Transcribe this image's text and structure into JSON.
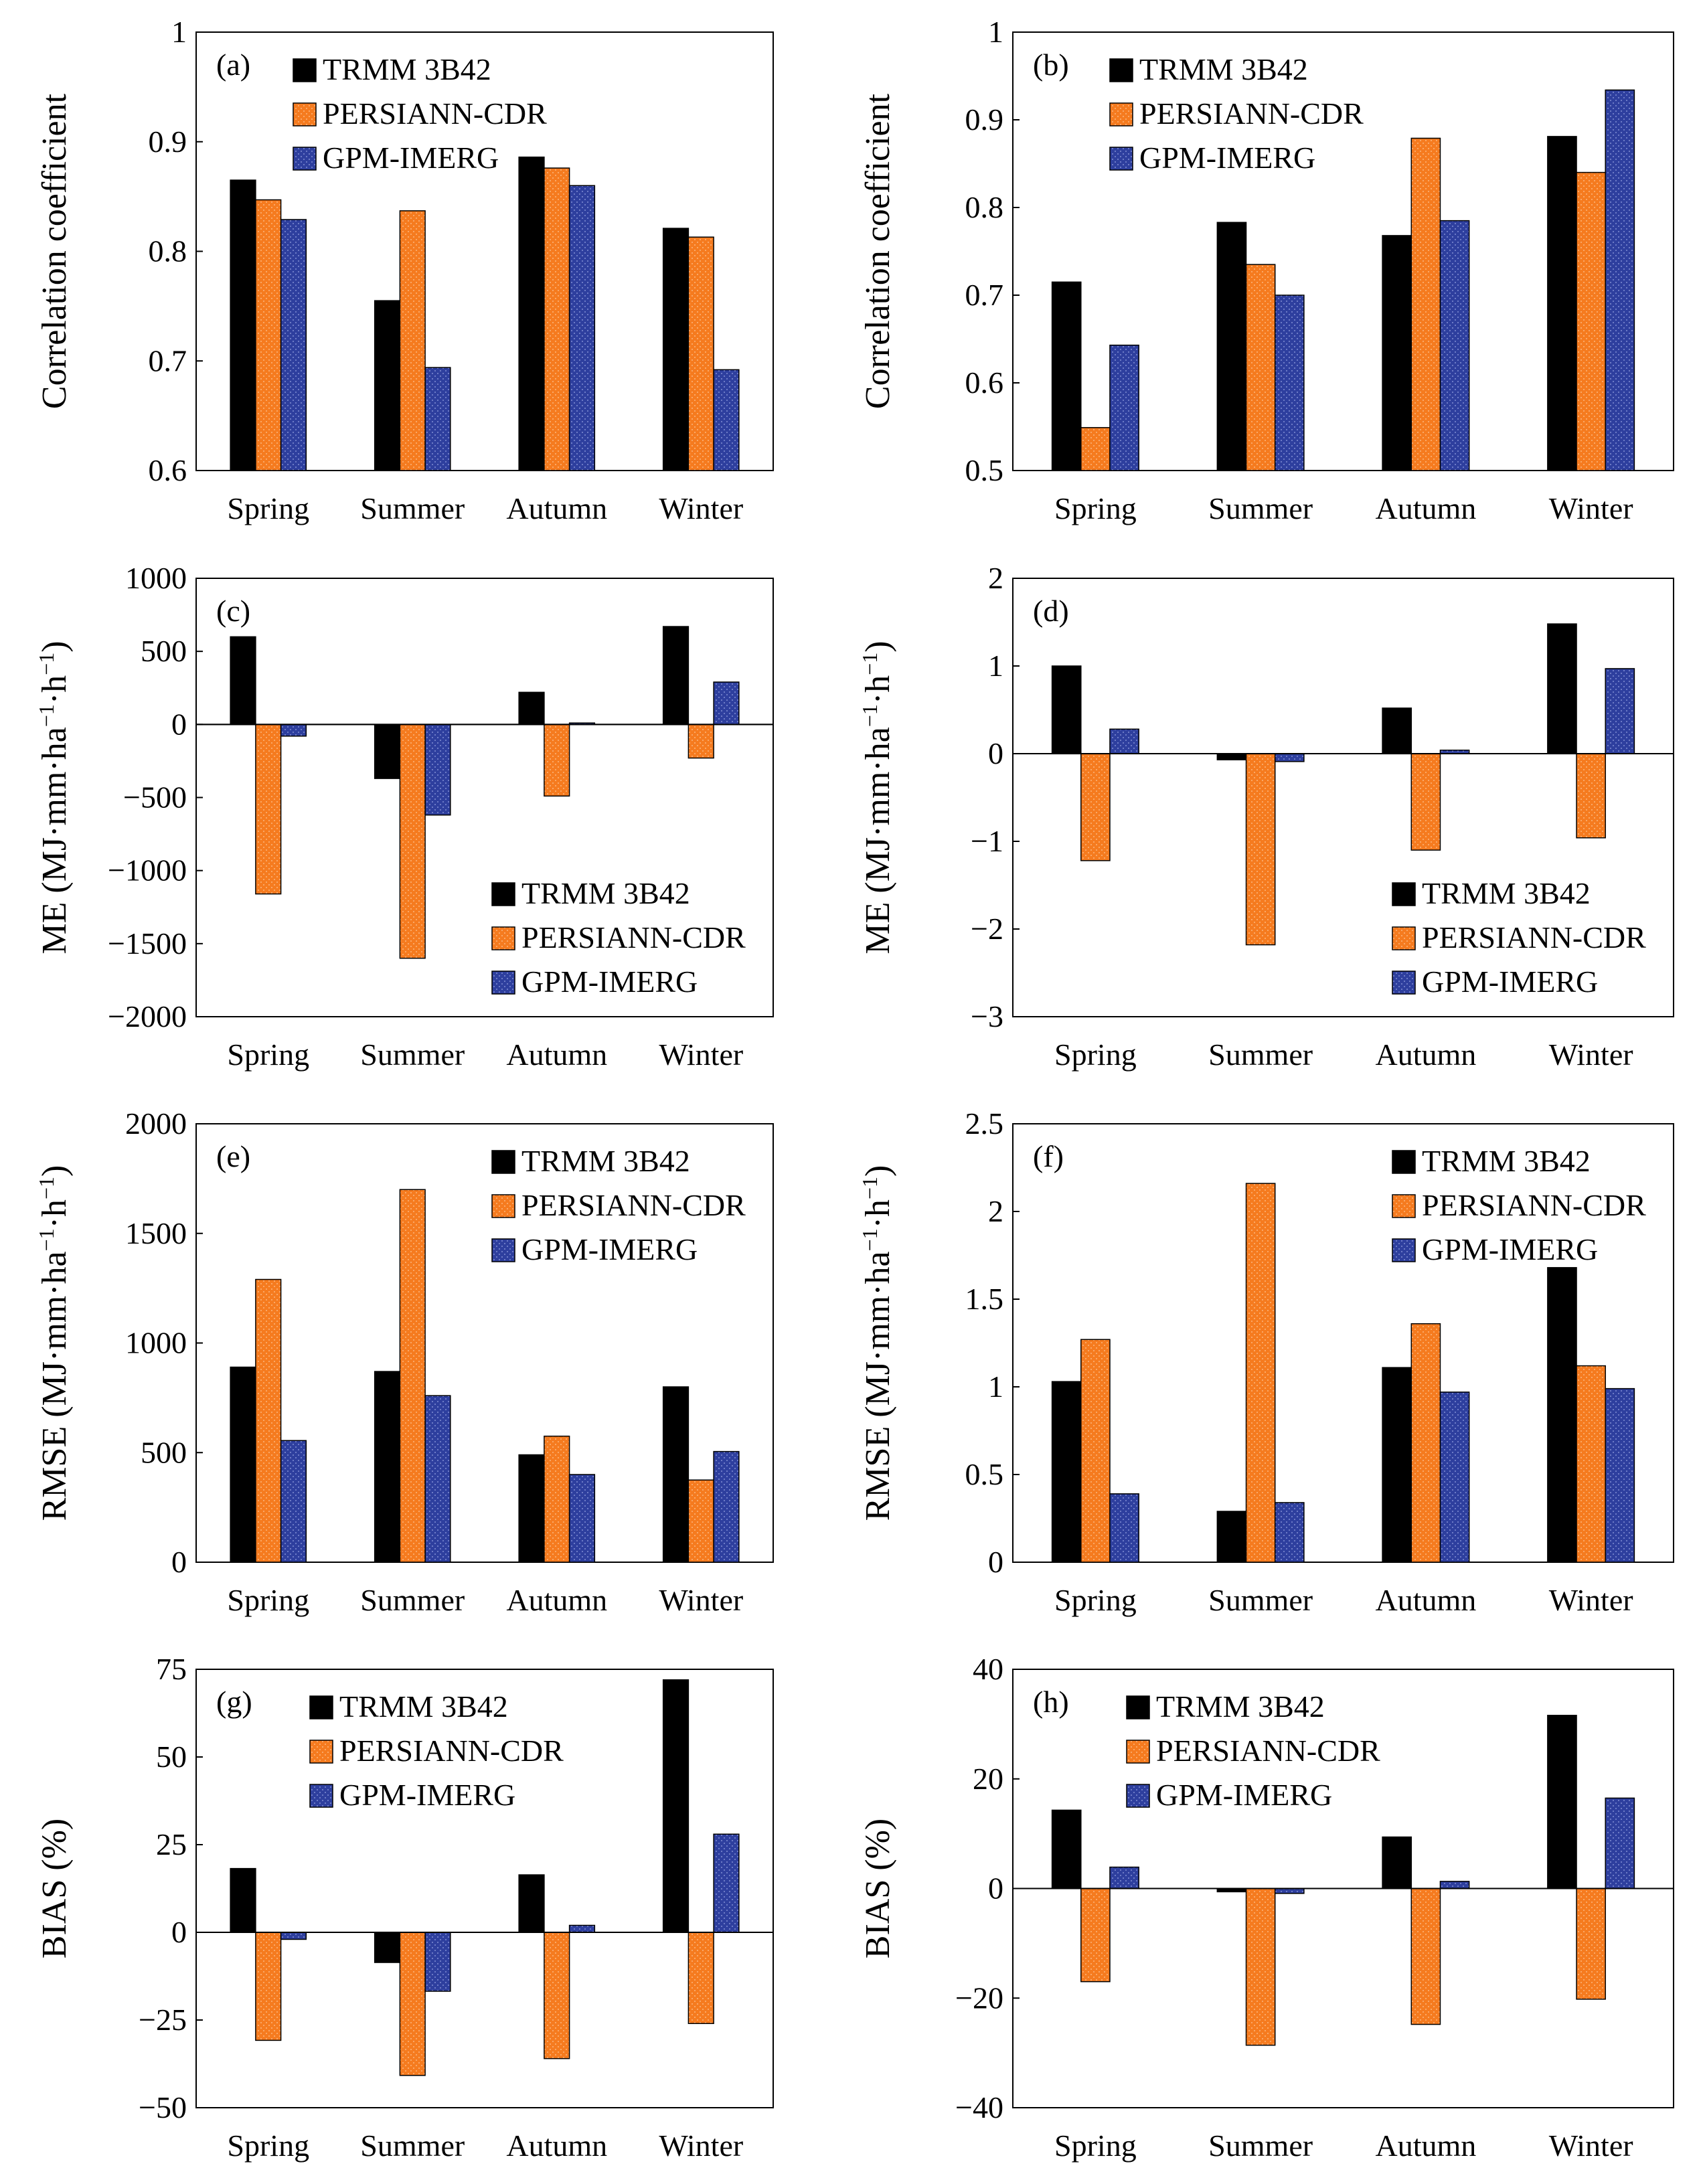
{
  "colors": {
    "TRMM 3B42": "#1a8a4e",
    "PERSIANN-CDR": "#f57b1f",
    "GPM-IMERG": "#2e3f9e"
  },
  "chart_data": [
    {
      "id": "a",
      "label": "(a)",
      "type": "bar",
      "categories": [
        "Spring",
        "Summer",
        "Autumn",
        "Winter"
      ],
      "ylabel": "Correlation coefficient",
      "ylim": [
        0.6,
        1.0
      ],
      "yticks": [
        0.6,
        0.7,
        0.8,
        0.9,
        1.0
      ],
      "ytick_labels": [
        "0.6",
        "0.7",
        "0.8",
        "0.9",
        "1"
      ],
      "legend": "top-center",
      "series": [
        {
          "name": "TRMM 3B42",
          "values": [
            0.865,
            0.755,
            0.886,
            0.821
          ]
        },
        {
          "name": "PERSIANN-CDR",
          "values": [
            0.847,
            0.837,
            0.876,
            0.813
          ]
        },
        {
          "name": "GPM-IMERG",
          "values": [
            0.829,
            0.694,
            0.86,
            0.692
          ]
        }
      ]
    },
    {
      "id": "b",
      "label": "(b)",
      "type": "bar",
      "categories": [
        "Spring",
        "Summer",
        "Autumn",
        "Winter"
      ],
      "ylabel": "Correlation coefficient",
      "ylim": [
        0.5,
        1.0
      ],
      "yticks": [
        0.5,
        0.6,
        0.7,
        0.8,
        0.9,
        1.0
      ],
      "ytick_labels": [
        "0.5",
        "0.6",
        "0.7",
        "0.8",
        "0.9",
        "1"
      ],
      "legend": "top-center",
      "series": [
        {
          "name": "TRMM 3B42",
          "values": [
            0.715,
            0.783,
            0.768,
            0.881
          ]
        },
        {
          "name": "PERSIANN-CDR",
          "values": [
            0.549,
            0.735,
            0.879,
            0.84
          ]
        },
        {
          "name": "GPM-IMERG",
          "values": [
            0.643,
            0.7,
            0.785,
            0.934
          ]
        }
      ]
    },
    {
      "id": "c",
      "label": "(c)",
      "type": "bar",
      "categories": [
        "Spring",
        "Summer",
        "Autumn",
        "Winter"
      ],
      "ylabel": "ME (MJ·mm·ha⁻¹·h⁻¹)",
      "ylim": [
        -2000,
        1000
      ],
      "yticks": [
        -2000,
        -1500,
        -1000,
        -500,
        0,
        500,
        1000
      ],
      "ytick_labels": [
        "−2000",
        "−1500",
        "−1000",
        "−500",
        "0",
        "500",
        "1000"
      ],
      "legend": "bottom-right",
      "series": [
        {
          "name": "TRMM 3B42",
          "values": [
            600,
            -370,
            220,
            670
          ]
        },
        {
          "name": "PERSIANN-CDR",
          "values": [
            -1160,
            -1600,
            -490,
            -230
          ]
        },
        {
          "name": "GPM-IMERG",
          "values": [
            -80,
            -620,
            10,
            290
          ]
        }
      ]
    },
    {
      "id": "d",
      "label": "(d)",
      "type": "bar",
      "categories": [
        "Spring",
        "Summer",
        "Autumn",
        "Winter"
      ],
      "ylabel": "ME (MJ·mm·ha⁻¹·h⁻¹)",
      "ylim": [
        -3,
        2
      ],
      "yticks": [
        -3,
        -2,
        -1,
        0,
        1,
        2
      ],
      "ytick_labels": [
        "−3",
        "−2",
        "−1",
        "0",
        "1",
        "2"
      ],
      "legend": "bottom-right",
      "series": [
        {
          "name": "TRMM 3B42",
          "values": [
            1.0,
            -0.07,
            0.52,
            1.48
          ]
        },
        {
          "name": "PERSIANN-CDR",
          "values": [
            -1.22,
            -2.18,
            -1.1,
            -0.96
          ]
        },
        {
          "name": "GPM-IMERG",
          "values": [
            0.28,
            -0.09,
            0.04,
            0.97
          ]
        }
      ]
    },
    {
      "id": "e",
      "label": "(e)",
      "type": "bar",
      "categories": [
        "Spring",
        "Summer",
        "Autumn",
        "Winter"
      ],
      "ylabel": "RMSE (MJ·mm·ha⁻¹·h⁻¹)",
      "ylim": [
        0,
        2000
      ],
      "yticks": [
        0,
        500,
        1000,
        1500,
        2000
      ],
      "ytick_labels": [
        "0",
        "500",
        "1000",
        "1500",
        "2000"
      ],
      "legend": "top-right",
      "series": [
        {
          "name": "TRMM 3B42",
          "values": [
            890,
            870,
            490,
            800
          ]
        },
        {
          "name": "PERSIANN-CDR",
          "values": [
            1290,
            1700,
            575,
            375
          ]
        },
        {
          "name": "GPM-IMERG",
          "values": [
            555,
            760,
            400,
            505
          ]
        }
      ]
    },
    {
      "id": "f",
      "label": "(f)",
      "type": "bar",
      "categories": [
        "Spring",
        "Summer",
        "Autumn",
        "Winter"
      ],
      "ylabel": "RMSE (MJ·mm·ha⁻¹·h⁻¹)",
      "ylim": [
        0,
        2.5
      ],
      "yticks": [
        0,
        0.5,
        1.0,
        1.5,
        2.0,
        2.5
      ],
      "ytick_labels": [
        "0",
        "0.5",
        "1",
        "1.5",
        "2",
        "2.5"
      ],
      "legend": "top-right",
      "series": [
        {
          "name": "TRMM 3B42",
          "values": [
            1.03,
            0.29,
            1.11,
            1.68
          ]
        },
        {
          "name": "PERSIANN-CDR",
          "values": [
            1.27,
            2.16,
            1.36,
            1.12
          ]
        },
        {
          "name": "GPM-IMERG",
          "values": [
            0.39,
            0.34,
            0.97,
            0.99
          ]
        }
      ]
    },
    {
      "id": "g",
      "label": "(g)",
      "type": "bar",
      "categories": [
        "Spring",
        "Summer",
        "Autumn",
        "Winter"
      ],
      "ylabel": "BIAS (%)",
      "ylim": [
        -50,
        75
      ],
      "yticks": [
        -50,
        -25,
        0,
        25,
        50,
        75
      ],
      "ytick_labels": [
        "−50",
        "−25",
        "0",
        "25",
        "50",
        "75"
      ],
      "legend": "top-left",
      "series": [
        {
          "name": "TRMM 3B42",
          "values": [
            18.2,
            -8.6,
            16.4,
            72.0
          ]
        },
        {
          "name": "PERSIANN-CDR",
          "values": [
            -30.8,
            -40.8,
            -36.0,
            -26.0
          ]
        },
        {
          "name": "GPM-IMERG",
          "values": [
            -2.0,
            -16.8,
            2.0,
            28.0
          ]
        }
      ]
    },
    {
      "id": "h",
      "label": "(h)",
      "type": "bar",
      "categories": [
        "Spring",
        "Summer",
        "Autumn",
        "Winter"
      ],
      "ylabel": "BIAS (%)",
      "ylim": [
        -40,
        40
      ],
      "yticks": [
        -40,
        -20,
        0,
        20,
        40
      ],
      "ytick_labels": [
        "−40",
        "−20",
        "0",
        "20",
        "40"
      ],
      "legend": "top-left",
      "series": [
        {
          "name": "TRMM 3B42",
          "values": [
            14.3,
            -0.6,
            9.4,
            31.6
          ]
        },
        {
          "name": "PERSIANN-CDR",
          "values": [
            -17.0,
            -28.6,
            -24.8,
            -20.2
          ]
        },
        {
          "name": "GPM-IMERG",
          "values": [
            3.9,
            -0.9,
            1.3,
            16.5
          ]
        }
      ]
    }
  ]
}
